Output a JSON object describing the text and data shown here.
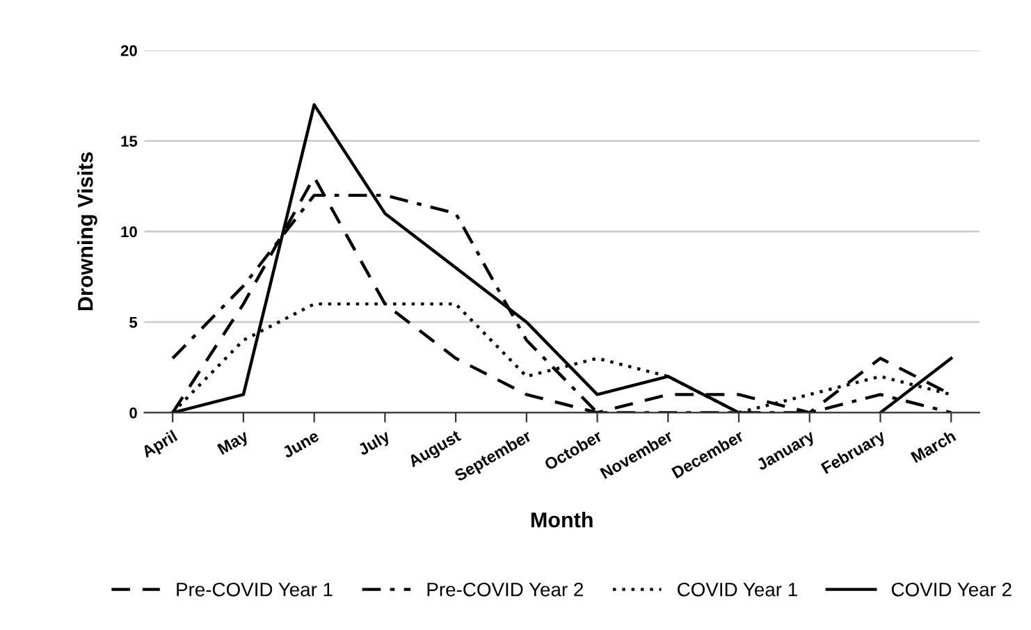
{
  "chart_data": {
    "type": "line",
    "xlabel": "Month",
    "ylabel": "Drowning Visits",
    "categories": [
      "April",
      "May",
      "June",
      "July",
      "August",
      "September",
      "October",
      "November",
      "December",
      "January",
      "February",
      "March"
    ],
    "series": [
      {
        "name": "Pre-COVID Year 1",
        "color": "#000000",
        "line_style": "dashed",
        "values": [
          0,
          6,
          13,
          6,
          3,
          1,
          0,
          1,
          1,
          0,
          3,
          1
        ]
      },
      {
        "name": "Pre-COVID Year 2",
        "color": "#000000",
        "line_style": "dashdot",
        "values": [
          3,
          7,
          12,
          12,
          11,
          4,
          0,
          0,
          0,
          0,
          1,
          0
        ]
      },
      {
        "name": "COVID Year 1",
        "color": "#000000",
        "line_style": "dotted",
        "values": [
          0,
          4,
          6,
          6,
          6,
          2,
          3,
          2,
          0,
          1,
          2,
          1
        ]
      },
      {
        "name": "COVID Year 2",
        "color": "#000000",
        "line_style": "solid",
        "values": [
          0,
          1,
          17,
          11,
          8,
          5,
          1,
          2,
          0,
          null,
          0,
          3
        ]
      }
    ],
    "ylim": [
      0,
      20
    ],
    "yticks": [
      0,
      5,
      10,
      15,
      20
    ],
    "grid": "y",
    "legend": "bottom",
    "marker": "none"
  }
}
